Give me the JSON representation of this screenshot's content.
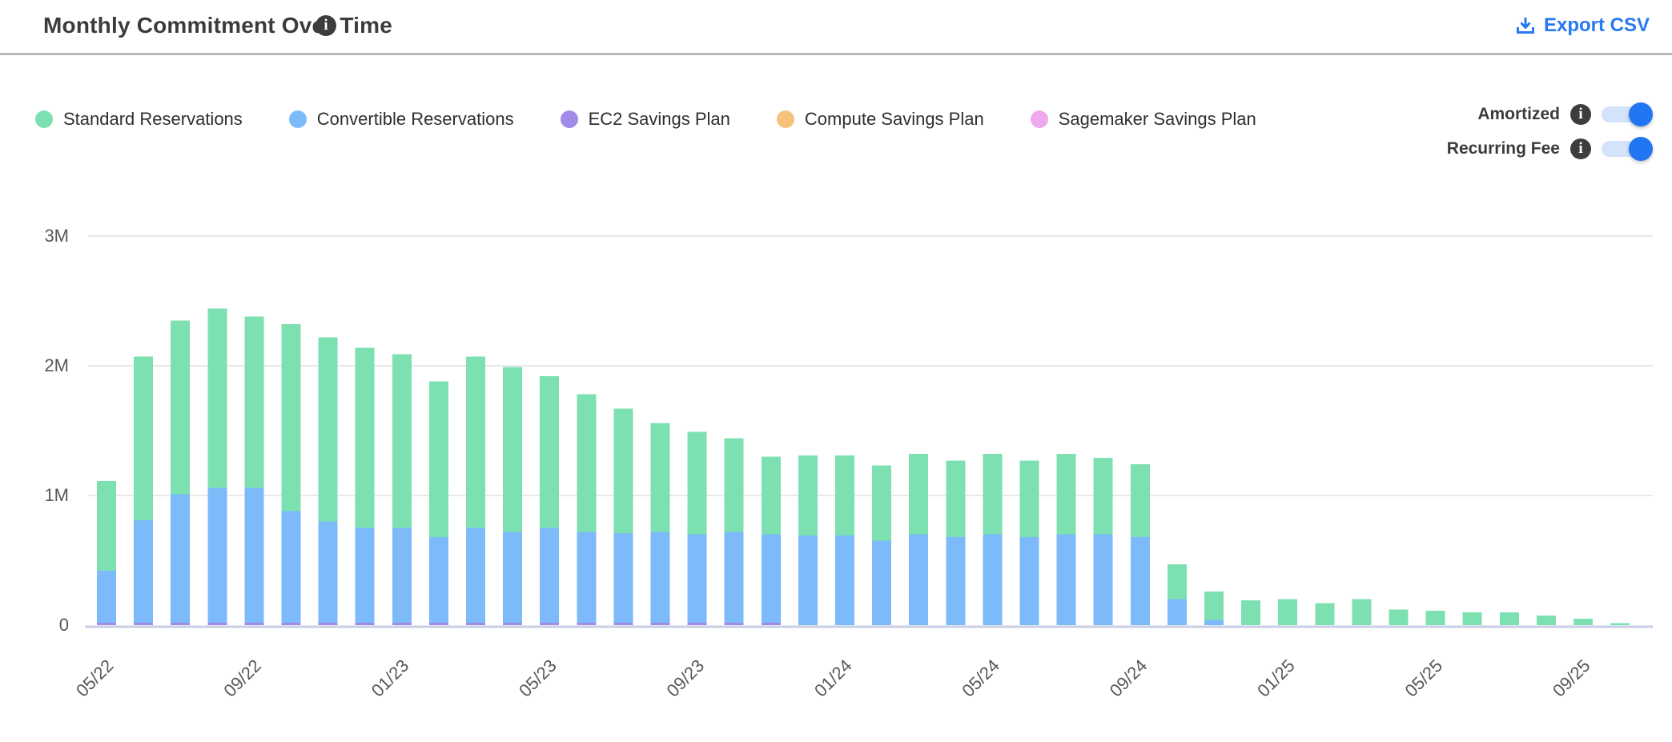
{
  "header": {
    "title": "Monthly Commitment Over Time",
    "title_info_icon": "info-icon",
    "export_label": "Export CSV",
    "accent_color": "#2678f3"
  },
  "toggles": {
    "amortized": {
      "label": "Amortized",
      "state": true
    },
    "recurring_fee": {
      "label": "Recurring Fee",
      "state": true
    }
  },
  "chart_data": {
    "type": "bar",
    "stacked": true,
    "title": "Monthly Commitment Over Time",
    "xlabel": "",
    "ylabel": "",
    "ylim": [
      0,
      3.2
    ],
    "grid": true,
    "legend_position": "top-left",
    "y_ticks": [
      {
        "label": "0",
        "value": 0
      },
      {
        "label": "1M",
        "value": 1
      },
      {
        "label": "2M",
        "value": 2
      },
      {
        "label": "3M",
        "value": 3
      }
    ],
    "x_tick_every": 4,
    "x": [
      "05/22",
      "06/22",
      "07/22",
      "08/22",
      "09/22",
      "10/22",
      "11/22",
      "12/22",
      "01/23",
      "02/23",
      "03/23",
      "04/23",
      "05/23",
      "06/23",
      "07/23",
      "08/23",
      "09/23",
      "10/23",
      "11/23",
      "12/23",
      "01/24",
      "02/24",
      "03/24",
      "04/24",
      "05/24",
      "06/24",
      "07/24",
      "08/24",
      "09/24",
      "10/24",
      "11/24",
      "12/24",
      "01/25",
      "02/25",
      "03/25",
      "04/25",
      "05/25",
      "06/25",
      "07/25",
      "08/25",
      "09/25",
      "10/25"
    ],
    "x_labels_shown": [
      "05/22",
      "09/22",
      "01/23",
      "05/23",
      "09/23",
      "01/24",
      "05/24",
      "09/24",
      "01/25",
      "05/25",
      "09/25"
    ],
    "units": "M (millions USD)",
    "series": [
      {
        "name": "Standard Reservations",
        "color": "#7de0b0",
        "values": [
          0.69,
          1.26,
          1.34,
          1.38,
          1.32,
          1.44,
          1.42,
          1.39,
          1.34,
          1.2,
          1.32,
          1.27,
          1.17,
          1.06,
          0.96,
          0.84,
          0.79,
          0.72,
          0.6,
          0.62,
          0.62,
          0.58,
          0.62,
          0.59,
          0.62,
          0.59,
          0.62,
          0.59,
          0.56,
          0.27,
          0.22,
          0.19,
          0.2,
          0.17,
          0.2,
          0.12,
          0.11,
          0.1,
          0.1,
          0.075,
          0.05,
          0.015
        ]
      },
      {
        "name": "Convertible Reservations",
        "color": "#7cbaf9",
        "values": [
          0.4,
          0.79,
          0.99,
          1.04,
          1.04,
          0.86,
          0.78,
          0.73,
          0.73,
          0.66,
          0.73,
          0.7,
          0.73,
          0.7,
          0.69,
          0.7,
          0.68,
          0.7,
          0.68,
          0.69,
          0.69,
          0.65,
          0.7,
          0.68,
          0.7,
          0.68,
          0.7,
          0.7,
          0.68,
          0.2,
          0.04,
          0,
          0,
          0,
          0,
          0,
          0,
          0,
          0,
          0,
          0,
          0
        ]
      },
      {
        "name": "EC2 Savings Plan",
        "color": "#a18ae8",
        "values": [
          0.02,
          0.02,
          0.02,
          0.02,
          0.02,
          0.02,
          0.02,
          0.02,
          0.02,
          0.02,
          0.02,
          0.02,
          0.02,
          0.02,
          0.02,
          0.02,
          0.02,
          0.02,
          0.02,
          0,
          0,
          0,
          0,
          0,
          0,
          0,
          0,
          0,
          0,
          0,
          0,
          0,
          0,
          0,
          0,
          0,
          0,
          0,
          0,
          0,
          0,
          0
        ]
      },
      {
        "name": "Compute Savings Plan",
        "color": "#f6c37d",
        "values": [
          0,
          0,
          0,
          0,
          0,
          0,
          0,
          0,
          0,
          0,
          0,
          0,
          0,
          0,
          0,
          0,
          0,
          0,
          0,
          0,
          0,
          0,
          0,
          0,
          0,
          0,
          0,
          0,
          0,
          0,
          0,
          0,
          0,
          0,
          0,
          0,
          0,
          0,
          0,
          0,
          0,
          0
        ]
      },
      {
        "name": "Sagemaker Savings Plan",
        "color": "#efa7ed",
        "values": [
          0,
          0,
          0,
          0,
          0,
          0,
          0,
          0,
          0,
          0,
          0,
          0,
          0,
          0,
          0,
          0,
          0,
          0,
          0,
          0,
          0,
          0,
          0,
          0,
          0,
          0,
          0,
          0,
          0,
          0,
          0,
          0,
          0,
          0,
          0,
          0,
          0,
          0,
          0,
          0,
          0,
          0
        ]
      }
    ],
    "stack_order_bottom_to_top": [
      "Sagemaker Savings Plan",
      "EC2 Savings Plan",
      "Convertible Reservations",
      "Standard Reservations",
      "Compute Savings Plan"
    ],
    "colors": {
      "gridline": "#e8e8e8",
      "baseline": "#c9cfe6",
      "axis_text": "#58585a"
    }
  }
}
